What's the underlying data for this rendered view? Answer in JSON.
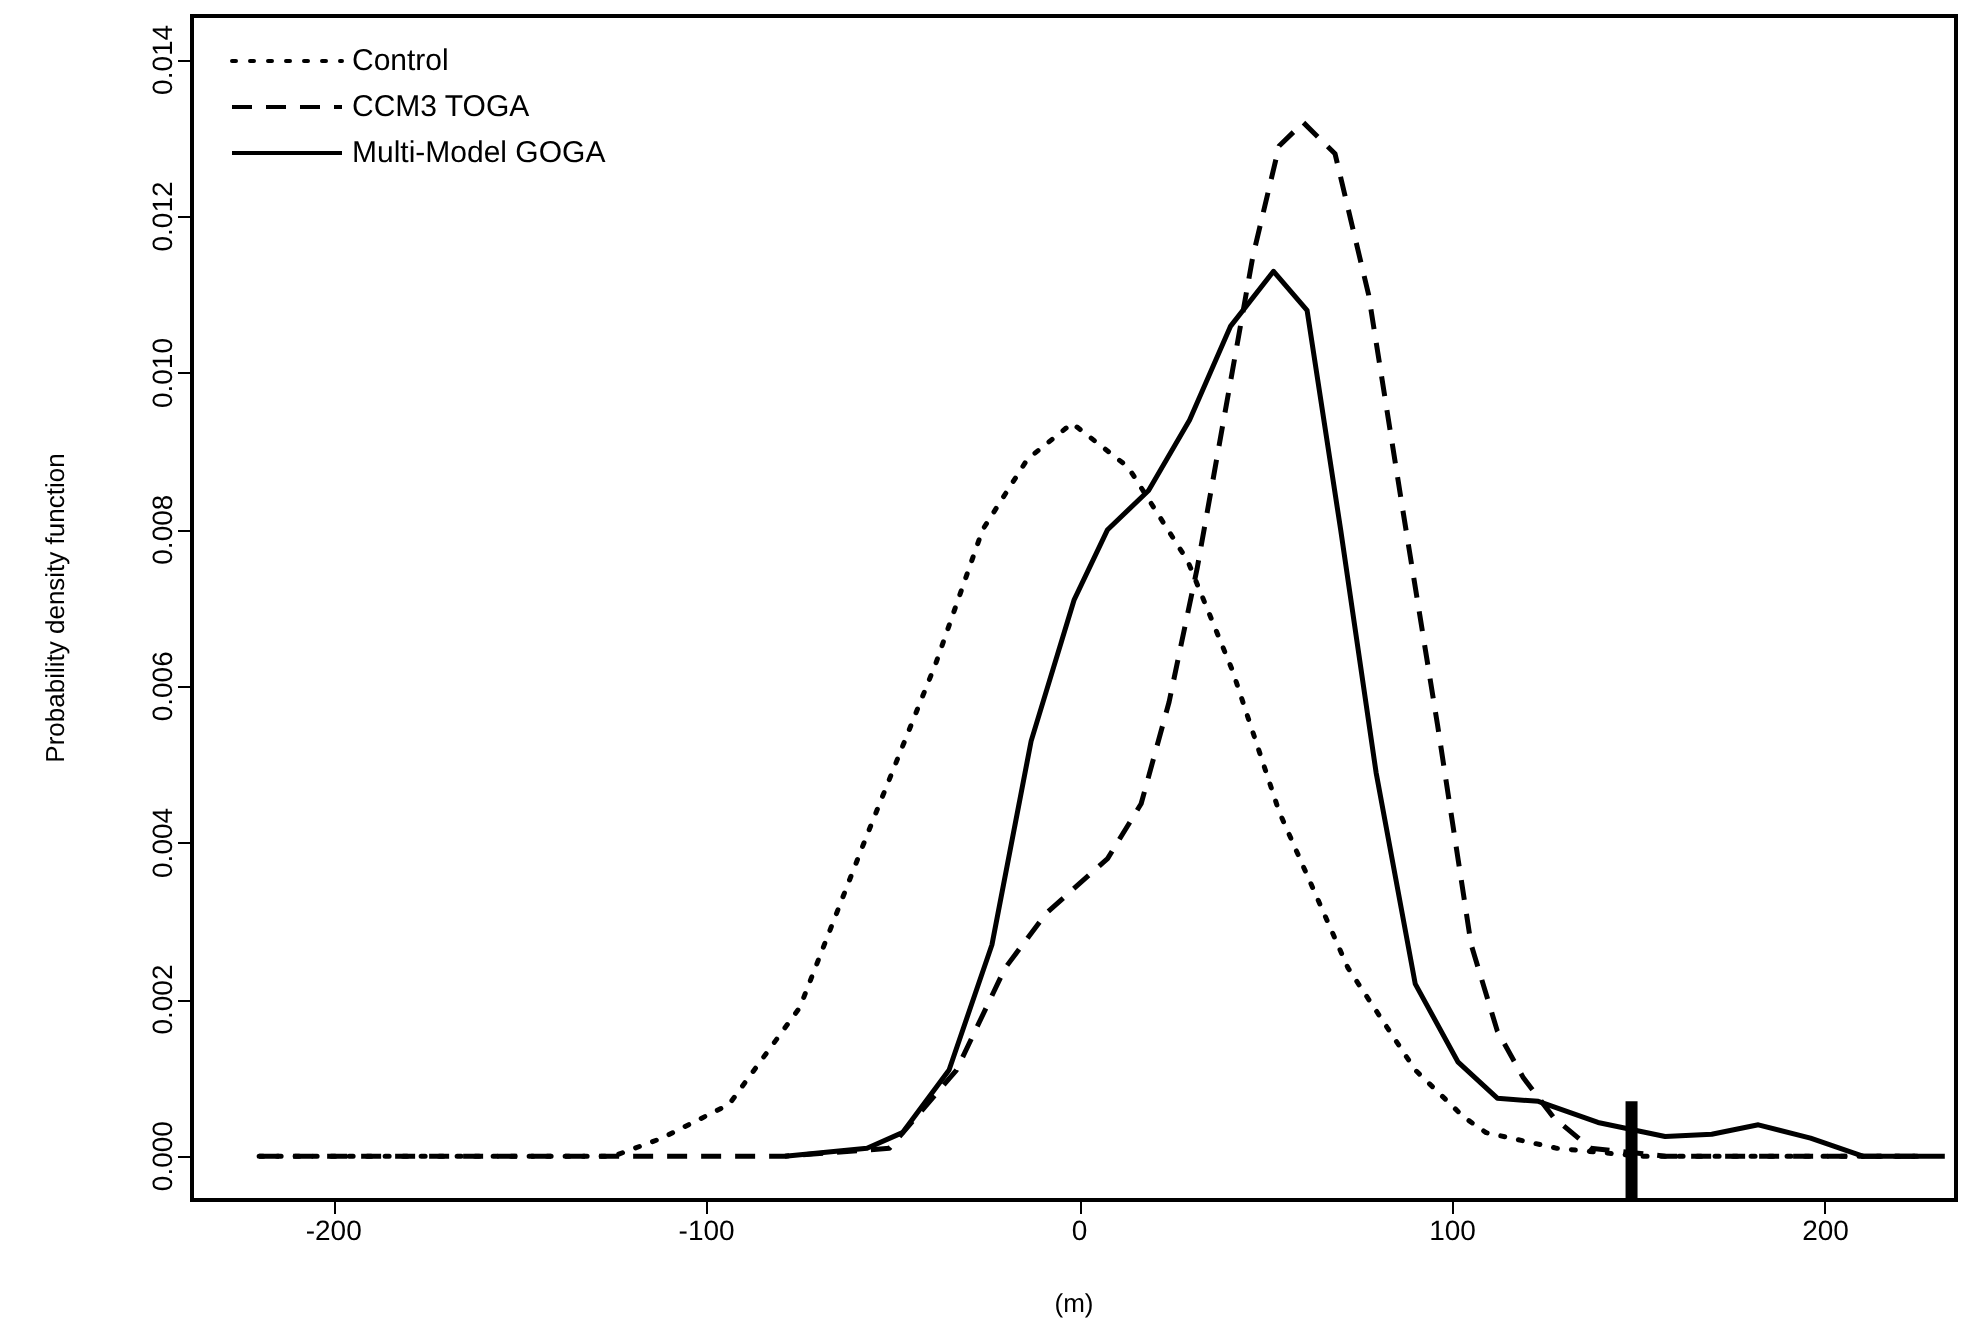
{
  "chart_data": {
    "type": "line",
    "xlabel": "(m)",
    "ylabel": "Probability density function",
    "xlim": [
      -238,
      235
    ],
    "ylim": [
      -0.00056,
      0.01456
    ],
    "xticks": [
      -200,
      -100,
      0,
      100,
      200
    ],
    "yticks": [
      {
        "value": 0,
        "label": "0.000"
      },
      {
        "value": 0.002,
        "label": "0.002"
      },
      {
        "value": 0.004,
        "label": "0.004"
      },
      {
        "value": 0.006,
        "label": "0.006"
      },
      {
        "value": 0.008,
        "label": "0.008"
      },
      {
        "value": 0.01,
        "label": "0.010"
      },
      {
        "value": 0.012,
        "label": "0.012"
      },
      {
        "value": 0.014,
        "label": "0.014"
      }
    ],
    "grid": false,
    "legend": "top left",
    "marker": "none",
    "series": [
      {
        "name": "Control",
        "color": "#000000",
        "line_style": "dotted",
        "x": [
          -220,
          -150,
          -125,
          -112,
          -94,
          -75,
          -57,
          -38.5,
          -26,
          -14,
          -2,
          13,
          29,
          41,
          53.5,
          72,
          90,
          103,
          109,
          128,
          150,
          225
        ],
        "values": [
          0,
          0,
          0,
          0.00023,
          0.00066,
          0.0019,
          0.0041,
          0.0063,
          0.008,
          0.0089,
          0.00936,
          0.0088,
          0.0076,
          0.0062,
          0.0044,
          0.0024,
          0.0011,
          0.0005,
          0.0003,
          0.0001,
          0,
          0
        ]
      },
      {
        "name": "CCM3 TOGA",
        "color": "#000000",
        "line_style": "dashed",
        "x": [
          -220,
          -79,
          -51,
          -33,
          -20,
          -9,
          7.5,
          16.5,
          24,
          31.5,
          39,
          46.5,
          53.5,
          60,
          68.5,
          77.5,
          86.5,
          96,
          105,
          112,
          119,
          127,
          137,
          157,
          225
        ],
        "values": [
          0,
          0,
          0.0001,
          0.0011,
          0.0024,
          0.0031,
          0.0038,
          0.0045,
          0.0058,
          0.0075,
          0.0095,
          0.0115,
          0.0129,
          0.0132,
          0.0128,
          0.011,
          0.0083,
          0.0055,
          0.0027,
          0.0016,
          0.001,
          0.0005,
          0.0001,
          0,
          0
        ]
      },
      {
        "name": "Multi-Model GOGA",
        "color": "#000000",
        "line_style": "solid",
        "x": [
          -79,
          -57,
          -47.5,
          -35,
          -23.5,
          -13,
          -1.5,
          7.5,
          18.5,
          29.5,
          40.5,
          52,
          61,
          70,
          79.5,
          90,
          101.5,
          112,
          123,
          139,
          157,
          169.5,
          182,
          196,
          210,
          232
        ],
        "values": [
          0,
          0.0001,
          0.0003,
          0.0011,
          0.0027,
          0.0053,
          0.0071,
          0.008,
          0.0085,
          0.0094,
          0.0106,
          0.0113,
          0.0108,
          0.008,
          0.0049,
          0.0022,
          0.0012,
          0.00074,
          0.0007,
          0.00043,
          0.00025,
          0.00028,
          0.0004,
          0.00023,
          0,
          0
        ]
      },
      {
        "color": "#000000",
        "line_style": "solid",
        "x": [
          148,
          148
        ],
        "values": [
          -0.00056,
          0.0007
        ]
      }
    ]
  }
}
